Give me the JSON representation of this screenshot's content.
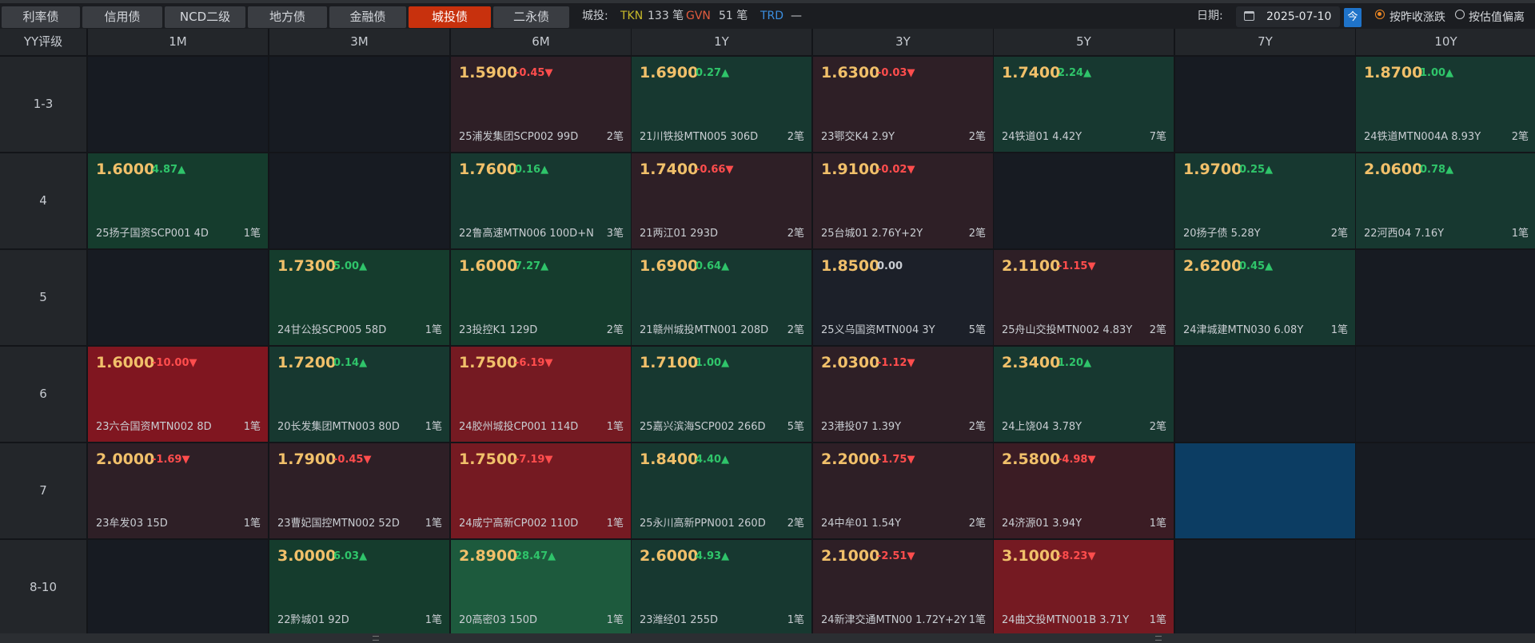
{
  "tabs": [
    {
      "label": "利率债",
      "active": false
    },
    {
      "label": "信用债",
      "active": false
    },
    {
      "label": "NCD二级",
      "active": false
    },
    {
      "label": "地方债",
      "active": false
    },
    {
      "label": "金融债",
      "active": false
    },
    {
      "label": "城投债",
      "active": true
    },
    {
      "label": "二永债",
      "active": false
    }
  ],
  "stats": {
    "prefix": "城投:",
    "tkn_label": "TKN",
    "tkn_value": "133 笔",
    "gvn_label": "GVN",
    "gvn_value": "51 笔",
    "trd_label": "TRD",
    "trd_value": "—"
  },
  "date": {
    "label": "日期:",
    "value": "2025-07-10",
    "today_label": "今"
  },
  "radios": [
    {
      "label": "按昨收涨跌",
      "selected": true
    },
    {
      "label": "按估值偏离",
      "selected": false
    }
  ],
  "colors": {
    "active_tab": "#c8310d",
    "yield": "#f1c06a",
    "up": "#2fc46a",
    "down": "#ff4d4d",
    "today_button": "#1f73c9"
  },
  "grid": {
    "corner": "YY评级",
    "columns": [
      "1M",
      "3M",
      "6M",
      "1Y",
      "3Y",
      "5Y",
      "7Y",
      "10Y"
    ],
    "rows": [
      {
        "label": "1-3",
        "cells": [
          null,
          null,
          {
            "yield": "1.5900",
            "change": "-0.45▼",
            "dir": "dn",
            "bond": "25浦发集团SCP002 99D",
            "count": "2笔",
            "tone": "c-dred"
          },
          {
            "yield": "1.6900",
            "change": "0.27▲",
            "dir": "up",
            "bond": "21川铁投MTN005 306D",
            "count": "2笔",
            "tone": "c-green"
          },
          {
            "yield": "1.6300",
            "change": "-0.03▼",
            "dir": "dn",
            "bond": "23鄂交K4 2.9Y",
            "count": "2笔",
            "tone": "c-dred"
          },
          {
            "yield": "1.7400",
            "change": "2.24▲",
            "dir": "up",
            "bond": "24铁道01 4.42Y",
            "count": "7笔",
            "tone": "c-green"
          },
          null,
          {
            "yield": "1.8700",
            "change": "1.00▲",
            "dir": "up",
            "bond": "24铁道MTN004A 8.93Y",
            "count": "2笔",
            "tone": "c-green"
          }
        ]
      },
      {
        "label": "4",
        "cells": [
          {
            "yield": "1.6000",
            "change": "4.87▲",
            "dir": "up",
            "bond": "25扬子国资SCP001 4D",
            "count": "1笔",
            "tone": "c-green2"
          },
          null,
          {
            "yield": "1.7600",
            "change": "0.16▲",
            "dir": "up",
            "bond": "22鲁高速MTN006 100D+N",
            "count": "3笔",
            "tone": "c-green"
          },
          {
            "yield": "1.7400",
            "change": "-0.66▼",
            "dir": "dn",
            "bond": "21两江01 293D",
            "count": "2笔",
            "tone": "c-dred"
          },
          {
            "yield": "1.9100",
            "change": "-0.02▼",
            "dir": "dn",
            "bond": "25台城01 2.76Y+2Y",
            "count": "2笔",
            "tone": "c-dred"
          },
          null,
          {
            "yield": "1.9700",
            "change": "0.25▲",
            "dir": "up",
            "bond": "20扬子债 5.28Y",
            "count": "2笔",
            "tone": "c-green"
          },
          {
            "yield": "2.0600",
            "change": "0.78▲",
            "dir": "up",
            "bond": "22河西04 7.16Y",
            "count": "1笔",
            "tone": "c-green"
          }
        ]
      },
      {
        "label": "5",
        "cells": [
          null,
          {
            "yield": "1.7300",
            "change": "5.00▲",
            "dir": "up",
            "bond": "24甘公投SCP005 58D",
            "count": "1笔",
            "tone": "c-green2"
          },
          {
            "yield": "1.6000",
            "change": "7.27▲",
            "dir": "up",
            "bond": "23投控K1 129D",
            "count": "2笔",
            "tone": "c-green2"
          },
          {
            "yield": "1.6900",
            "change": "0.64▲",
            "dir": "up",
            "bond": "21赣州城投MTN001 208D",
            "count": "2笔",
            "tone": "c-green"
          },
          {
            "yield": "1.8500",
            "change": "0.00",
            "dir": "flat",
            "bond": "25义乌国资MTN004 3Y",
            "count": "5笔",
            "tone": "c-neutral"
          },
          {
            "yield": "2.1100",
            "change": "-1.15▼",
            "dir": "dn",
            "bond": "25舟山交投MTN002 4.83Y",
            "count": "2笔",
            "tone": "c-dred"
          },
          {
            "yield": "2.6200",
            "change": "0.45▲",
            "dir": "up",
            "bond": "24津城建MTN030 6.08Y",
            "count": "1笔",
            "tone": "c-green"
          },
          null
        ]
      },
      {
        "label": "6",
        "cells": [
          {
            "yield": "1.6000",
            "change": "-10.00▼",
            "dir": "dn",
            "bond": "23六合国资MTN002 8D",
            "count": "1笔",
            "tone": "c-red2"
          },
          {
            "yield": "1.7200",
            "change": "0.14▲",
            "dir": "up",
            "bond": "20长发集团MTN003 80D",
            "count": "1笔",
            "tone": "c-green"
          },
          {
            "yield": "1.7500",
            "change": "-6.19▼",
            "dir": "dn",
            "bond": "24胶州城投CP001 114D",
            "count": "1笔",
            "tone": "c-red"
          },
          {
            "yield": "1.7100",
            "change": "1.00▲",
            "dir": "up",
            "bond": "25嘉兴滨海SCP002 266D",
            "count": "5笔",
            "tone": "c-green"
          },
          {
            "yield": "2.0300",
            "change": "-1.12▼",
            "dir": "dn",
            "bond": "23港投07 1.39Y",
            "count": "2笔",
            "tone": "c-dred"
          },
          {
            "yield": "2.3400",
            "change": "1.20▲",
            "dir": "up",
            "bond": "24上饶04 3.78Y",
            "count": "2笔",
            "tone": "c-green"
          },
          null,
          null
        ]
      },
      {
        "label": "7",
        "cells": [
          {
            "yield": "2.0000",
            "change": "-1.69▼",
            "dir": "dn",
            "bond": "23牟发03 15D",
            "count": "1笔",
            "tone": "c-dred"
          },
          {
            "yield": "1.7900",
            "change": "-0.45▼",
            "dir": "dn",
            "bond": "23曹妃国控MTN002 52D",
            "count": "1笔",
            "tone": "c-dred"
          },
          {
            "yield": "1.7500",
            "change": "-7.19▼",
            "dir": "dn",
            "bond": "24咸宁高新CP002 110D",
            "count": "1笔",
            "tone": "c-red"
          },
          {
            "yield": "1.8400",
            "change": "4.40▲",
            "dir": "up",
            "bond": "25永川高新PPN001 260D",
            "count": "2笔",
            "tone": "c-green"
          },
          {
            "yield": "2.2000",
            "change": "-1.75▼",
            "dir": "dn",
            "bond": "24中牟01 1.54Y",
            "count": "2笔",
            "tone": "c-dred"
          },
          {
            "yield": "2.5800",
            "change": "-4.98▼",
            "dir": "dn",
            "bond": "24济源01 3.94Y",
            "count": "1笔",
            "tone": "c-mred"
          },
          {
            "blank": "blue"
          },
          null
        ]
      },
      {
        "label": "8-10",
        "cells": [
          null,
          {
            "yield": "3.0000",
            "change": "6.03▲",
            "dir": "up",
            "bond": "22黔城01 92D",
            "count": "1笔",
            "tone": "c-green2"
          },
          {
            "yield": "2.8900",
            "change": "28.47▲",
            "dir": "up",
            "bond": "20高密03 150D",
            "count": "1笔",
            "tone": "c-green3"
          },
          {
            "yield": "2.6000",
            "change": "4.93▲",
            "dir": "up",
            "bond": "23潍经01 255D",
            "count": "1笔",
            "tone": "c-green"
          },
          {
            "yield": "2.1000",
            "change": "-2.51▼",
            "dir": "dn",
            "bond": "24新津交通MTN00 1.72Y+2Y",
            "count": "1笔",
            "tone": "c-dred"
          },
          {
            "yield": "3.1000",
            "change": "-8.23▼",
            "dir": "dn",
            "bond": "24曲文投MTN001B 3.71Y",
            "count": "1笔",
            "tone": "c-red"
          },
          null,
          null
        ]
      }
    ]
  }
}
